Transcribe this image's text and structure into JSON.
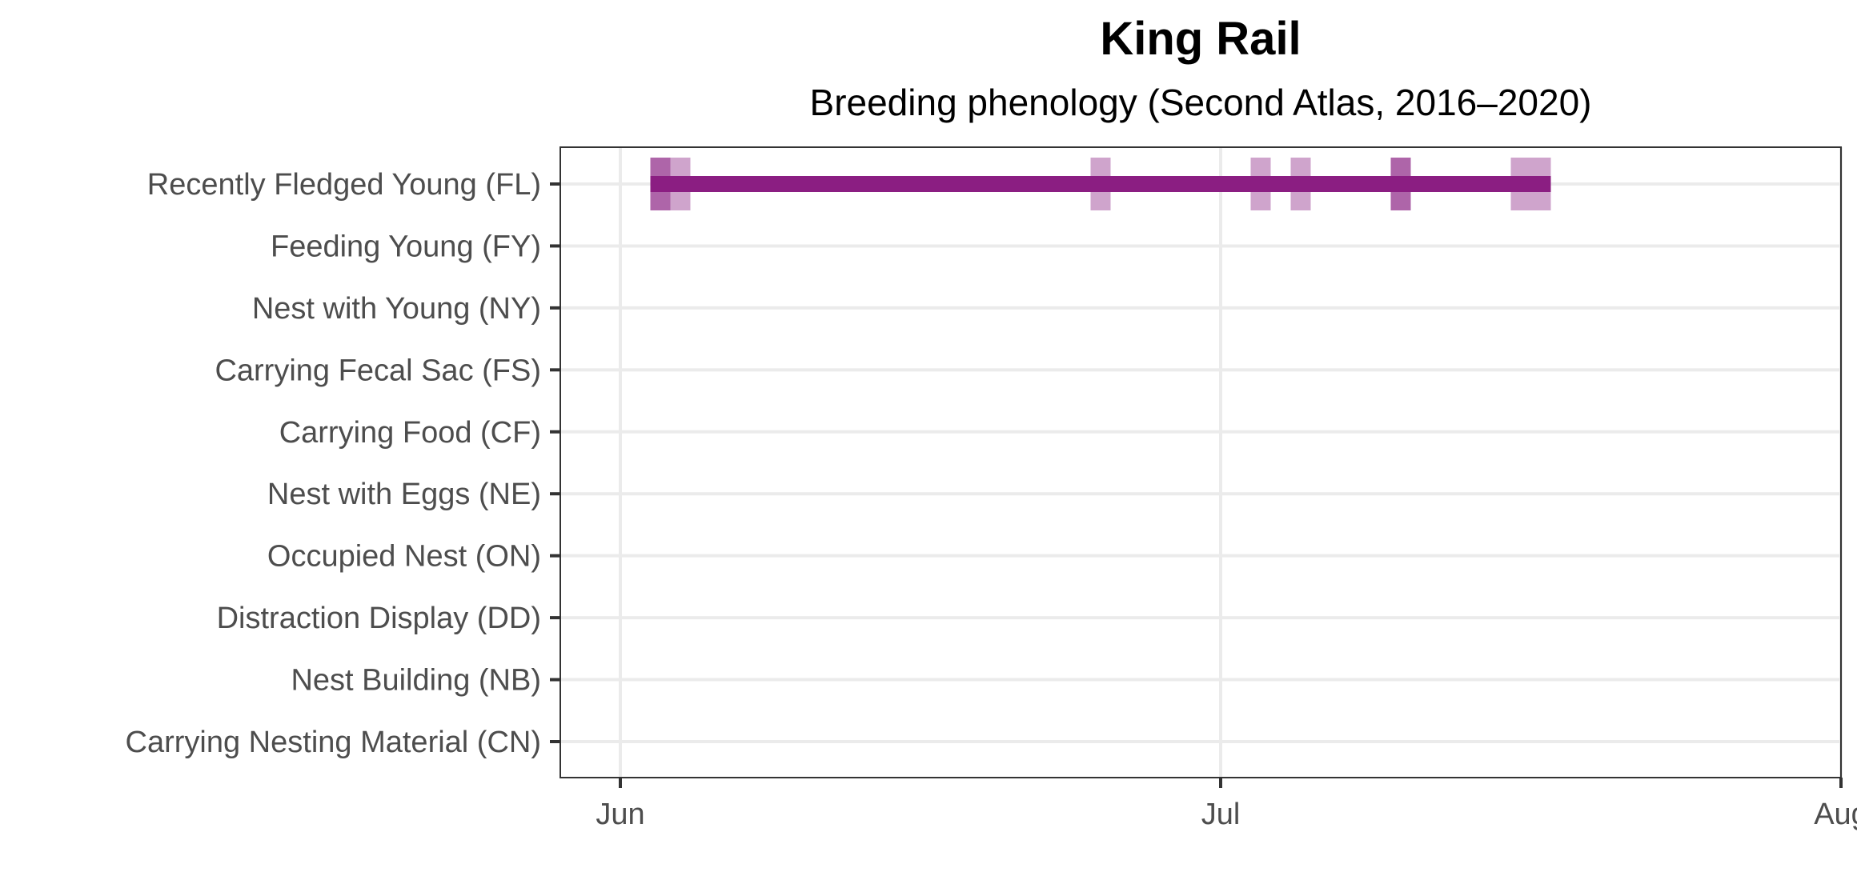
{
  "chart_data": {
    "type": "phenology",
    "title": "King Rail",
    "subtitle": "Breeding phenology (Second Atlas, 2016–2020)",
    "xlabel": "",
    "ylabel": "",
    "x_ticks": [
      {
        "label": "Jun",
        "date": "2020-06-01"
      },
      {
        "label": "Jul",
        "date": "2020-07-01"
      },
      {
        "label": "Aug",
        "date": "2020-08-01"
      }
    ],
    "xlim": [
      "2020-05-29",
      "2020-08-01"
    ],
    "categories": [
      "Recently Fledged Young (FL)",
      "Feeding Young (FY)",
      "Nest with Young (NY)",
      "Carrying Fecal Sac (FS)",
      "Carrying Food (CF)",
      "Nest with Eggs (NE)",
      "Occupied Nest (ON)",
      "Distraction Display (DD)",
      "Nest Building (NB)",
      "Carrying Nesting Material (CN)"
    ],
    "series": [
      {
        "category": "Recently Fledged Young (FL)",
        "range": [
          "2020-06-03",
          "2020-07-17"
        ],
        "observations": [
          {
            "date": "2020-06-03",
            "count": 2
          },
          {
            "date": "2020-06-04",
            "count": 1
          },
          {
            "date": "2020-06-25",
            "count": 1
          },
          {
            "date": "2020-07-03",
            "count": 1
          },
          {
            "date": "2020-07-05",
            "count": 1
          },
          {
            "date": "2020-07-10",
            "count": 2
          },
          {
            "date": "2020-07-16",
            "count": 1
          },
          {
            "date": "2020-07-17",
            "count": 1
          }
        ]
      }
    ],
    "colors": {
      "range_line": "#8b1e82",
      "observation": "#a04a9a",
      "gridline": "#ebebeb",
      "panel_border": "#333333",
      "tick_label": "#4d4d4d"
    },
    "grid": true,
    "legend": "none"
  }
}
